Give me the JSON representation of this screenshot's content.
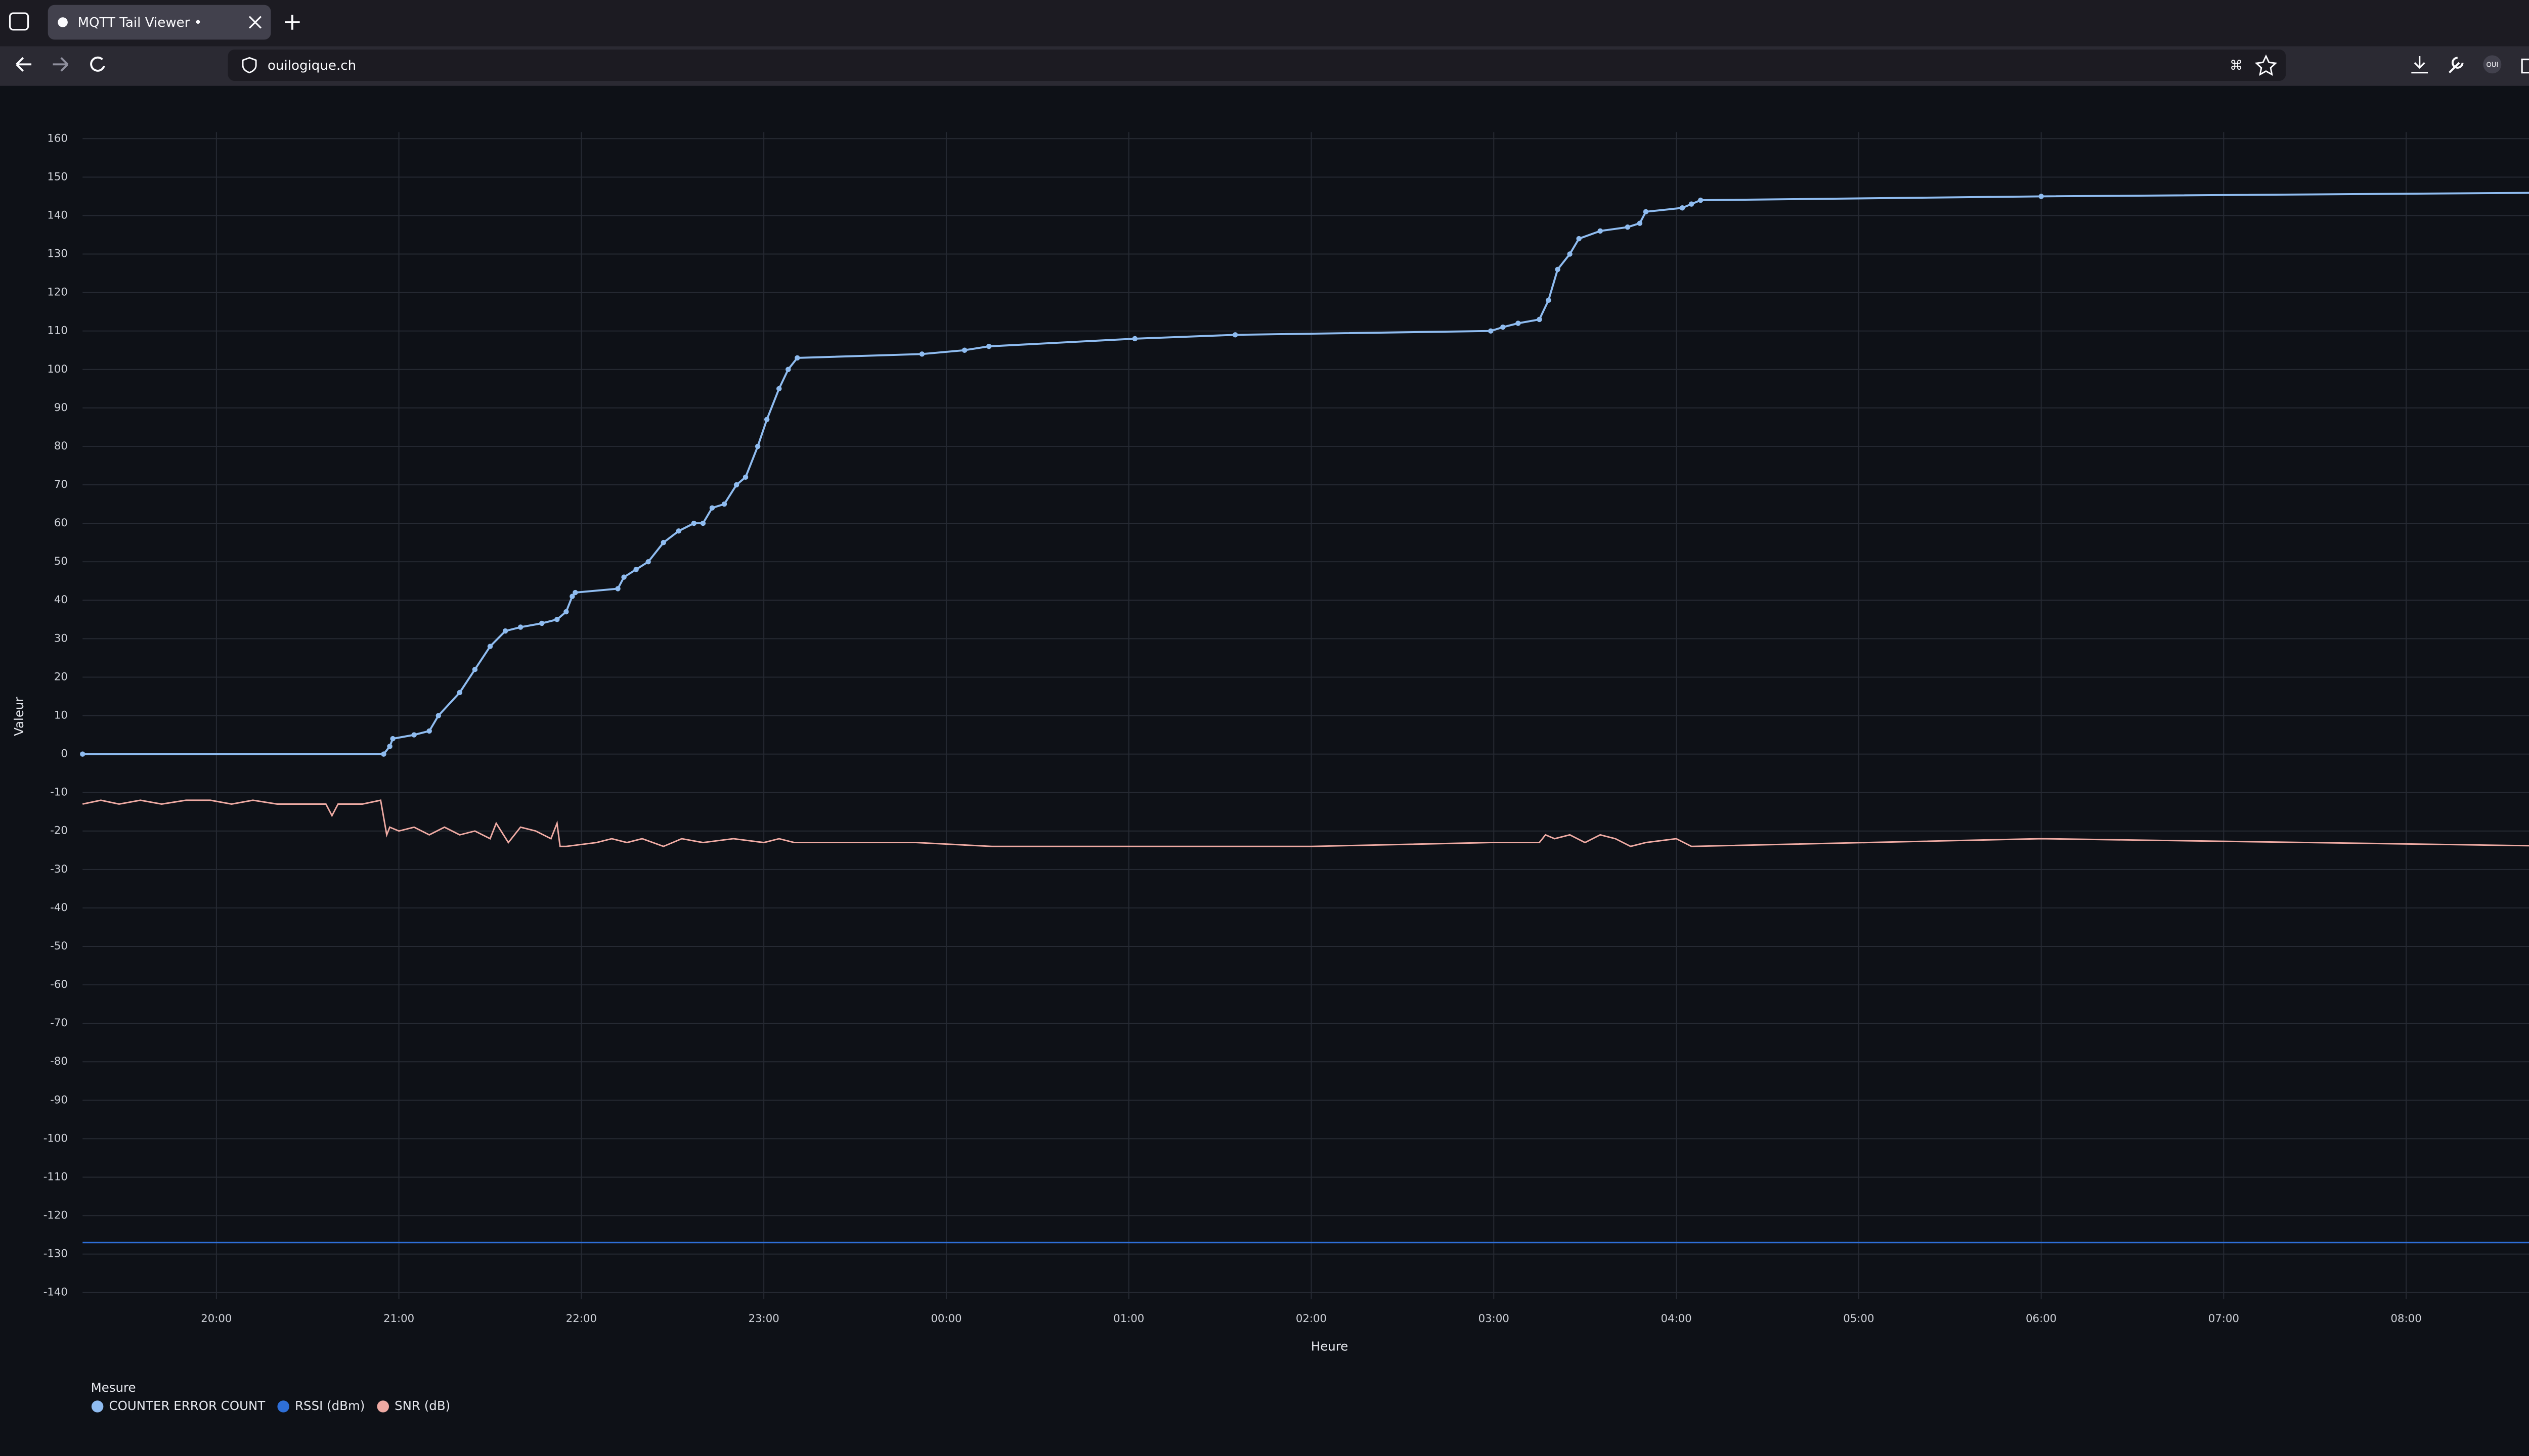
{
  "browser": {
    "tab_title": "MQTT Tail Viewer •",
    "url": "ouilogique.ch",
    "profile": "OUI"
  },
  "chart_data": {
    "type": "line",
    "x_label": "Heure",
    "y_label": "Valeur",
    "legend_title": "Mesure",
    "legend": "bottom-left",
    "grid": true,
    "xlim": [
      "19:16",
      "08:56"
    ],
    "xticks": [
      "20:00",
      "21:00",
      "22:00",
      "23:00",
      "00:00",
      "01:00",
      "02:00",
      "03:00",
      "04:00",
      "05:00",
      "06:00",
      "07:00",
      "08:00"
    ],
    "ylim": [
      -140,
      160
    ],
    "yticks": [
      -140,
      -130,
      -120,
      -110,
      -100,
      -90,
      -80,
      -70,
      -60,
      -50,
      -40,
      -30,
      -20,
      -10,
      0,
      10,
      20,
      30,
      40,
      50,
      60,
      70,
      80,
      90,
      100,
      110,
      120,
      130,
      140,
      150,
      160
    ],
    "series": [
      {
        "name": "COUNTER ERROR COUNT",
        "color": "#8fbcf0",
        "markers": true,
        "x": [
          "19:16",
          "20:55",
          "20:57",
          "20:58",
          "21:05",
          "21:10",
          "21:13",
          "21:20",
          "21:25",
          "21:30",
          "21:35",
          "21:40",
          "21:47",
          "21:52",
          "21:55",
          "21:57",
          "21:58",
          "22:12",
          "22:14",
          "22:18",
          "22:22",
          "22:27",
          "22:32",
          "22:37",
          "22:40",
          "22:43",
          "22:47",
          "22:51",
          "22:54",
          "22:58",
          "23:01",
          "23:05",
          "23:08",
          "23:11",
          "23:52",
          "00:06",
          "00:14",
          "01:02",
          "01:35",
          "02:59",
          "03:03",
          "03:08",
          "03:15",
          "03:18",
          "03:21",
          "03:25",
          "03:28",
          "03:35",
          "03:44",
          "03:48",
          "03:50",
          "04:02",
          "04:05",
          "04:08",
          "06:00",
          "08:56"
        ],
        "values": [
          0,
          0,
          2,
          4,
          5,
          6,
          10,
          16,
          22,
          28,
          32,
          33,
          34,
          35,
          37,
          41,
          42,
          43,
          46,
          48,
          50,
          55,
          58,
          60,
          60,
          64,
          65,
          70,
          72,
          80,
          87,
          95,
          100,
          103,
          104,
          105,
          106,
          108,
          109,
          110,
          111,
          112,
          113,
          118,
          126,
          130,
          134,
          136,
          137,
          138,
          141,
          142,
          143,
          144,
          145,
          146
        ]
      },
      {
        "name": "RSSI (dBm)",
        "color": "#2e6fd8",
        "markers": false,
        "x": [
          "19:16",
          "08:56"
        ],
        "values": [
          -127,
          -127
        ]
      },
      {
        "name": "SNR (dB)",
        "color": "#eeaaa3",
        "markers": false,
        "x": [
          "19:16",
          "19:22",
          "19:28",
          "19:35",
          "19:42",
          "19:50",
          "19:58",
          "20:05",
          "20:12",
          "20:20",
          "20:28",
          "20:36",
          "20:38",
          "20:40",
          "20:48",
          "20:54",
          "20:56",
          "20:57",
          "21:00",
          "21:05",
          "21:10",
          "21:15",
          "21:20",
          "21:25",
          "21:30",
          "21:32",
          "21:36",
          "21:40",
          "21:45",
          "21:50",
          "21:52",
          "21:53",
          "21:55",
          "22:05",
          "22:10",
          "22:15",
          "22:20",
          "22:27",
          "22:33",
          "22:40",
          "22:50",
          "23:00",
          "23:05",
          "23:10",
          "23:50",
          "00:15",
          "01:00",
          "02:00",
          "02:59",
          "03:15",
          "03:17",
          "03:20",
          "03:25",
          "03:30",
          "03:35",
          "03:40",
          "03:45",
          "03:50",
          "04:00",
          "04:05",
          "06:00",
          "08:56"
        ],
        "values": [
          -13,
          -12,
          -13,
          -12,
          -13,
          -12,
          -12,
          -13,
          -12,
          -13,
          -13,
          -13,
          -16,
          -13,
          -13,
          -12,
          -21,
          -19,
          -20,
          -19,
          -21,
          -19,
          -21,
          -20,
          -22,
          -18,
          -23,
          -19,
          -20,
          -22,
          -18,
          -24,
          -24,
          -23,
          -22,
          -23,
          -22,
          -24,
          -22,
          -23,
          -22,
          -23,
          -22,
          -23,
          -23,
          -24,
          -24,
          -24,
          -23,
          -23,
          -21,
          -22,
          -21,
          -23,
          -21,
          -22,
          -24,
          -23,
          -22,
          -24,
          -22,
          -24
        ]
      }
    ]
  }
}
